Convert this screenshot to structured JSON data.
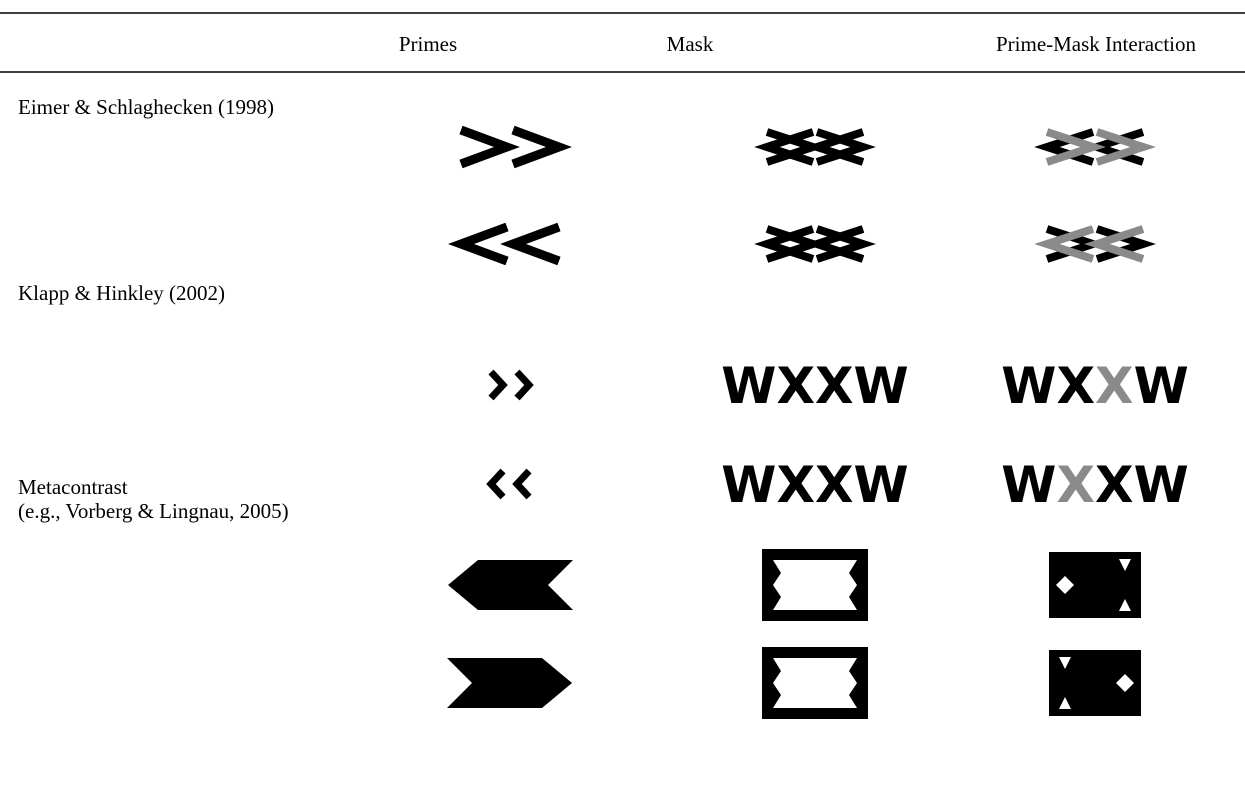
{
  "header": {
    "columns": [
      "Primes",
      "Mask",
      "Prime-Mask Interaction"
    ]
  },
  "rows": [
    {
      "label": [
        "Eimer & Schlaghecken (1998)"
      ]
    },
    {
      "label": [
        "Klapp & Hinkley (2002)"
      ],
      "mask_text": "WXXW"
    },
    {
      "label": [
        "Metacontrast",
        "(e.g., Vorberg & Lingnau, 2005)"
      ]
    }
  ]
}
